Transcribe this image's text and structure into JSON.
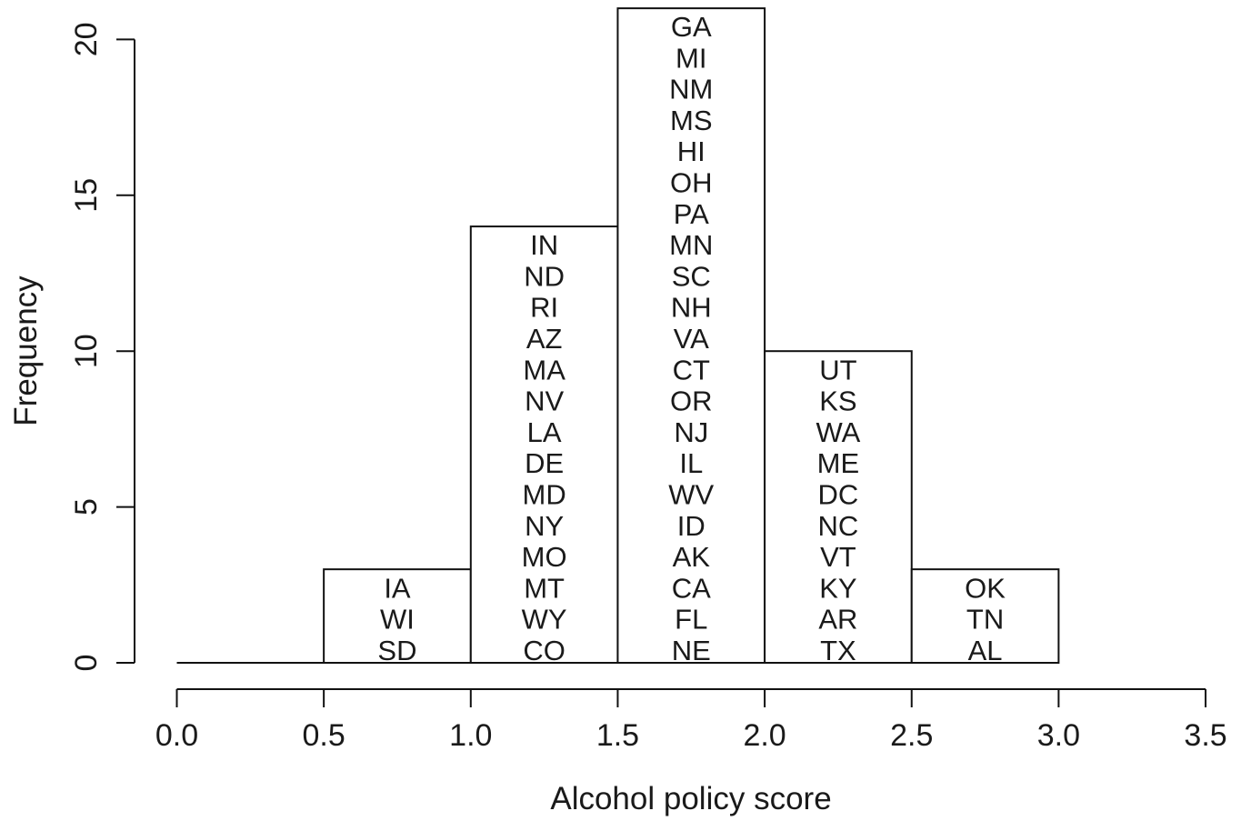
{
  "chart_data": {
    "type": "bar",
    "subtype": "histogram",
    "title": "",
    "xlabel": "Alcohol policy score",
    "ylabel": "Frequency",
    "xlim": [
      0.0,
      3.5
    ],
    "ylim": [
      0,
      21
    ],
    "x_ticks": [
      "0.0",
      "0.5",
      "1.0",
      "1.5",
      "2.0",
      "2.5",
      "3.0",
      "3.5"
    ],
    "y_ticks": [
      "0",
      "5",
      "10",
      "15",
      "20"
    ],
    "grid": false,
    "legend": "none",
    "bins": [
      {
        "range": [
          0.0,
          0.5
        ],
        "count": 0,
        "labels": []
      },
      {
        "range": [
          0.5,
          1.0
        ],
        "count": 3,
        "labels": [
          "IA",
          "WI",
          "SD"
        ]
      },
      {
        "range": [
          1.0,
          1.5
        ],
        "count": 14,
        "labels": [
          "IN",
          "ND",
          "RI",
          "AZ",
          "MA",
          "NV",
          "LA",
          "DE",
          "MD",
          "NY",
          "MO",
          "MT",
          "WY",
          "CO"
        ]
      },
      {
        "range": [
          1.5,
          2.0
        ],
        "count": 21,
        "labels": [
          "GA",
          "MI",
          "NM",
          "MS",
          "HI",
          "OH",
          "PA",
          "MN",
          "SC",
          "NH",
          "VA",
          "CT",
          "OR",
          "NJ",
          "IL",
          "WV",
          "ID",
          "AK",
          "CA",
          "FL",
          "NE"
        ]
      },
      {
        "range": [
          2.0,
          2.5
        ],
        "count": 10,
        "labels": [
          "UT",
          "KS",
          "WA",
          "ME",
          "DC",
          "NC",
          "VT",
          "KY",
          "AR",
          "TX"
        ]
      },
      {
        "range": [
          2.5,
          3.0
        ],
        "count": 3,
        "labels": [
          "OK",
          "TN",
          "AL"
        ]
      }
    ]
  }
}
